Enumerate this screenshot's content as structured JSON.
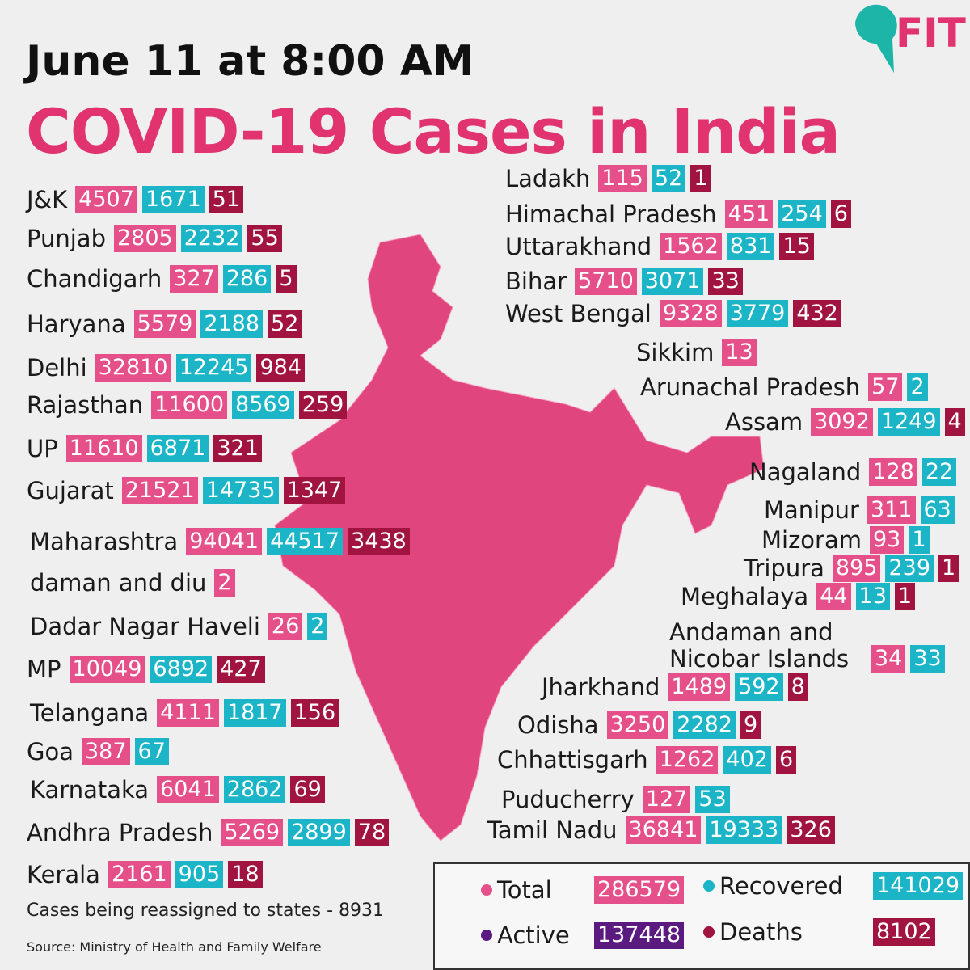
{
  "header": {
    "date": "June 11 at 8:00 AM",
    "title": "COVID-19 Cases in India",
    "logo": "FIT"
  },
  "states": [
    {
      "name": "J&K",
      "total": 4507,
      "recovered": 1671,
      "deaths": 51
    },
    {
      "name": "Punjab",
      "total": 2805,
      "recovered": 2232,
      "deaths": 55
    },
    {
      "name": "Chandigarh",
      "total": 327,
      "recovered": 286,
      "deaths": 5
    },
    {
      "name": "Haryana",
      "total": 5579,
      "recovered": 2188,
      "deaths": 52
    },
    {
      "name": "Delhi",
      "total": 32810,
      "recovered": 12245,
      "deaths": 984
    },
    {
      "name": "Rajasthan",
      "total": 11600,
      "recovered": 8569,
      "deaths": 259
    },
    {
      "name": "UP",
      "total": 11610,
      "recovered": 6871,
      "deaths": 321
    },
    {
      "name": "Gujarat",
      "total": 21521,
      "recovered": 14735,
      "deaths": 1347
    },
    {
      "name": "Maharashtra",
      "total": 94041,
      "recovered": 44517,
      "deaths": 3438
    },
    {
      "name": "daman and diu",
      "total": 2
    },
    {
      "name": "Dadar Nagar Haveli",
      "total": 26,
      "recovered": 2
    },
    {
      "name": "MP",
      "total": 10049,
      "recovered": 6892,
      "deaths": 427
    },
    {
      "name": "Telangana",
      "total": 4111,
      "recovered": 1817,
      "deaths": 156
    },
    {
      "name": "Goa",
      "total": 387,
      "recovered": 67
    },
    {
      "name": "Karnataka",
      "total": 6041,
      "recovered": 2862,
      "deaths": 69
    },
    {
      "name": "Andhra Pradesh",
      "total": 5269,
      "recovered": 2899,
      "deaths": 78
    },
    {
      "name": "Kerala",
      "total": 2161,
      "recovered": 905,
      "deaths": 18
    },
    {
      "name": "Ladakh",
      "total": 115,
      "recovered": 52,
      "deaths": 1
    },
    {
      "name": "Himachal Pradesh",
      "total": 451,
      "recovered": 254,
      "deaths": 6
    },
    {
      "name": "Uttarakhand",
      "total": 1562,
      "recovered": 831,
      "deaths": 15
    },
    {
      "name": "Bihar",
      "total": 5710,
      "recovered": 3071,
      "deaths": 33
    },
    {
      "name": "West Bengal",
      "total": 9328,
      "recovered": 3779,
      "deaths": 432
    },
    {
      "name": "Sikkim",
      "total": 13
    },
    {
      "name": "Arunachal Pradesh",
      "total": 57,
      "recovered": 2
    },
    {
      "name": "Assam",
      "total": 3092,
      "recovered": 1249,
      "deaths": 4
    },
    {
      "name": "Nagaland",
      "total": 128,
      "recovered": 22
    },
    {
      "name": "Manipur",
      "total": 311,
      "recovered": 63
    },
    {
      "name": "Mizoram",
      "total": 93,
      "recovered": 1
    },
    {
      "name": "Tripura",
      "total": 895,
      "recovered": 239,
      "deaths": 1
    },
    {
      "name": "Meghalaya",
      "total": 44,
      "recovered": 13,
      "deaths": 1
    },
    {
      "name": "Andaman and Nicobar Islands",
      "total": 34,
      "recovered": 33
    },
    {
      "name": "Jharkhand",
      "total": 1489,
      "recovered": 592,
      "deaths": 8
    },
    {
      "name": "Odisha",
      "total": 3250,
      "recovered": 2282,
      "deaths": 9
    },
    {
      "name": "Chhattisgarh",
      "total": 1262,
      "recovered": 402,
      "deaths": 6
    },
    {
      "name": "Puducherry",
      "total": 127,
      "recovered": 53
    },
    {
      "name": "Tamil Nadu",
      "total": 36841,
      "recovered": 19333,
      "deaths": 326
    }
  ],
  "legend": [
    {
      "label": "Total",
      "value": 286579
    },
    {
      "label": "Recovered",
      "value": 141029
    },
    {
      "label": "Active",
      "value": 137448
    },
    {
      "label": "Deaths",
      "value": 8102
    }
  ],
  "footnote": "Cases being reassigned to states  - 8931",
  "source": "Source: Ministry of Health and Family Welfare"
}
